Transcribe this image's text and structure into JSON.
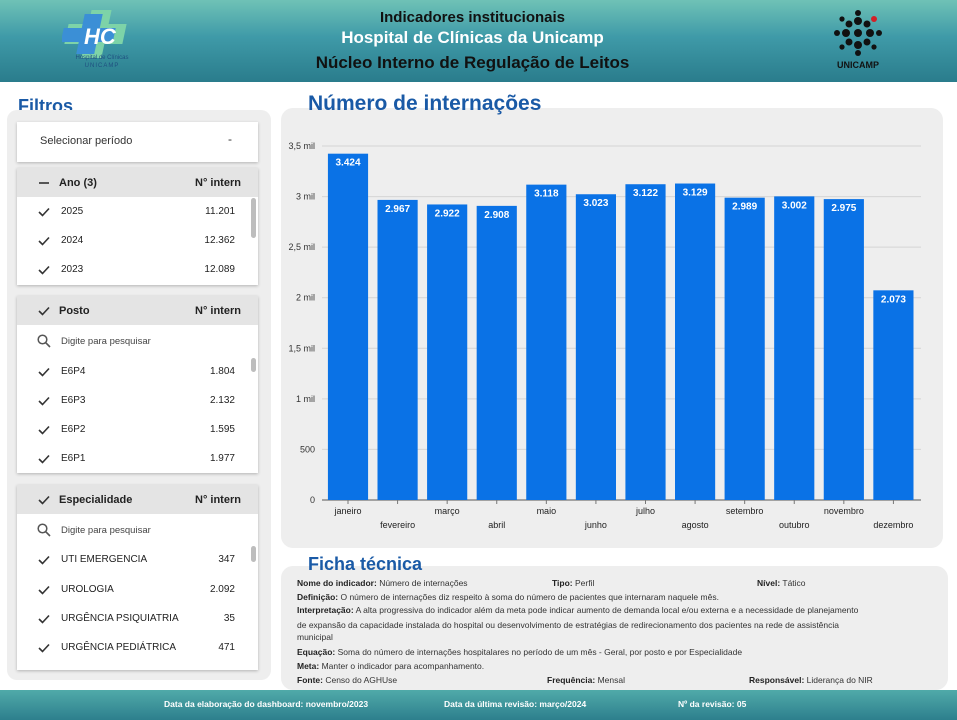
{
  "header": {
    "line1": "Indicadores institucionais",
    "line2": "Hospital de Clínicas da Unicamp",
    "line3": "Núcleo Interno de Regulação de Leitos",
    "hc_logo_text": "HC",
    "hc_logo_sub1": "Hospital de Clínicas",
    "hc_logo_sub2": "UNICAMP",
    "unicamp_logo_text": "UNICAMP"
  },
  "filters": {
    "title": "Filtros",
    "period": {
      "label": "Selecionar período",
      "icon": "dropdown-icon"
    },
    "ano": {
      "header": "Ano (3)",
      "value_header": "N° intern",
      "items": [
        {
          "label": "2025",
          "value": "11.201"
        },
        {
          "label": "2024",
          "value": "12.362"
        },
        {
          "label": "2023",
          "value": "12.089"
        }
      ]
    },
    "posto": {
      "header": "Posto",
      "value_header": "N° intern",
      "search_placeholder": "Digite para pesquisar",
      "items": [
        {
          "label": "E6P4",
          "value": "1.804"
        },
        {
          "label": "E6P3",
          "value": "2.132"
        },
        {
          "label": "E6P2",
          "value": "1.595"
        },
        {
          "label": "E6P1",
          "value": "1.977"
        }
      ]
    },
    "especialidade": {
      "header": "Especialidade",
      "value_header": "N° intern",
      "search_placeholder": "Digite para pesquisar",
      "items": [
        {
          "label": "UTI EMERGENCIA",
          "value": "347"
        },
        {
          "label": "UROLOGIA",
          "value": "2.092"
        },
        {
          "label": "URGÊNCIA PSIQUIATRIA",
          "value": "35"
        },
        {
          "label": "URGÊNCIA PEDIÁTRICA",
          "value": "471"
        }
      ]
    }
  },
  "chart": {
    "title": "Número de internações"
  },
  "chart_data": {
    "type": "bar",
    "title": "Número de internações",
    "categories": [
      "janeiro",
      "fevereiro",
      "março",
      "abril",
      "maio",
      "junho",
      "julho",
      "agosto",
      "setembro",
      "outubro",
      "novembro",
      "dezembro"
    ],
    "values": [
      3424,
      2967,
      2922,
      2908,
      3118,
      3023,
      3122,
      3129,
      2989,
      3002,
      2975,
      2073
    ],
    "data_labels": [
      "3.424",
      "2.967",
      "2.922",
      "2.908",
      "3.118",
      "3.023",
      "3.122",
      "3.129",
      "2.989",
      "3.002",
      "2.975",
      "2.073"
    ],
    "y_ticks": [
      0,
      500,
      1000,
      1500,
      2000,
      2500,
      3000,
      3500
    ],
    "y_tick_labels": [
      "0",
      "500",
      "1 mil",
      "1,5 mil",
      "2 mil",
      "2,5 mil",
      "3 mil",
      "3,5 mil"
    ],
    "ylim": [
      0,
      3500
    ],
    "bar_color": "#0a72e6",
    "grid": true,
    "legend": "none"
  },
  "ficha": {
    "title": "Ficha técnica",
    "nome_label": "Nome do indicador:",
    "nome_value": "Número de internações",
    "tipo_label": "Tipo:",
    "tipo_value": "Perfil",
    "nivel_label": "Nível:",
    "nivel_value": "Tático",
    "definicao_label": "Definição:",
    "definicao_value": "O número de internações diz respeito à soma do número de pacientes que internaram naquele mês.",
    "interpretacao_label": "Interpretação:",
    "interpretacao_value1": "A alta progressiva do indicador além da meta pode indicar aumento de demanda local e/ou externa e a necessidade de planejamento",
    "interpretacao_value2": "de expansão da capacidade instalada do hospital ou desenvolvimento de estratégias de redirecionamento dos pacientes na rede de assistência",
    "interpretacao_value3": "municipal",
    "equacao_label": "Equação:",
    "equacao_value": "Soma do número de internações hospitalares no período de um mês - Geral, por posto e por Especialidade",
    "meta_label": "Meta:",
    "meta_value": "Manter o indicador para acompanhamento.",
    "fonte_label": "Fonte:",
    "fonte_value": "Censo do AGHUse",
    "frequencia_label": "Frequência:",
    "frequencia_value": "Mensal",
    "responsavel_label": "Responsável:",
    "responsavel_value": "Liderança do NIR"
  },
  "footer": {
    "elaboracao": "Data da elaboração do dashboard: novembro/2023",
    "revisao": "Data da última revisão: março/2024",
    "n_revisao": "Nº da revisão: 05"
  },
  "colors": {
    "title_blue": "#1a5aa6",
    "bar_blue": "#0a72e6",
    "header_teal": "#3f9aa8"
  }
}
